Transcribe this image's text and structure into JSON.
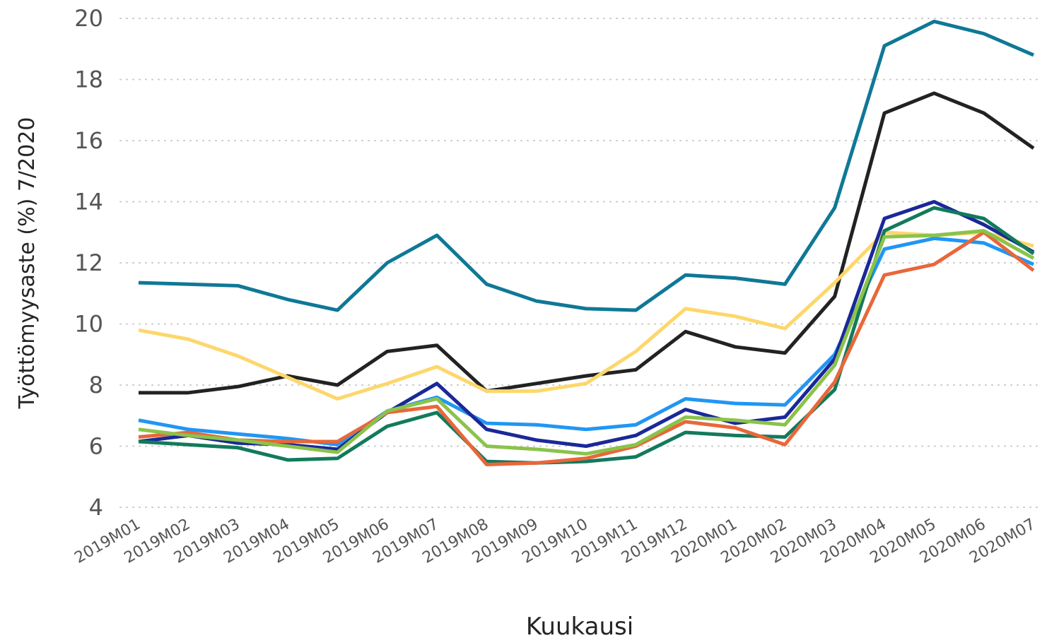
{
  "chart_data": {
    "type": "line",
    "x_label": "Kuukausi",
    "y_label": "Työttömyysaste (%) 7/2020",
    "categories": [
      "2019M01",
      "2019M02",
      "2019M03",
      "2019M04",
      "2019M05",
      "2019M06",
      "2019M07",
      "2019M08",
      "2019M09",
      "2019M10",
      "2019M11",
      "2019M12",
      "2020M01",
      "2020M02",
      "2020M03",
      "2020M04",
      "2020M05",
      "2020M06",
      "2020M07"
    ],
    "ylim": [
      4,
      20
    ],
    "yticks": [
      4,
      6,
      8,
      10,
      12,
      14,
      16,
      18,
      20
    ],
    "grid": true,
    "series": [
      {
        "color": "#0f7896",
        "values": [
          11.35,
          11.3,
          11.25,
          10.8,
          10.45,
          12.0,
          12.9,
          11.3,
          10.75,
          10.5,
          10.45,
          11.6,
          11.5,
          11.3,
          13.8,
          19.1,
          19.9,
          19.5,
          18.8
        ]
      },
      {
        "color": "#222222",
        "values": [
          7.75,
          7.75,
          7.95,
          8.3,
          8.0,
          9.1,
          9.3,
          7.8,
          8.05,
          8.3,
          8.5,
          9.75,
          9.25,
          9.05,
          10.9,
          16.9,
          17.55,
          16.9,
          15.75
        ]
      },
      {
        "color": "#fdd76b",
        "values": [
          9.8,
          9.5,
          8.95,
          8.25,
          7.55,
          8.05,
          8.6,
          7.8,
          7.8,
          8.05,
          9.1,
          10.5,
          10.25,
          9.85,
          11.35,
          13.0,
          12.9,
          13.0,
          12.55
        ]
      },
      {
        "color": "#2196f3",
        "values": [
          6.85,
          6.55,
          6.4,
          6.25,
          6.05,
          7.15,
          7.6,
          6.75,
          6.7,
          6.55,
          6.7,
          7.55,
          7.4,
          7.35,
          9.0,
          12.45,
          12.8,
          12.65,
          11.95
        ]
      },
      {
        "color": "#1b2898",
        "values": [
          6.15,
          6.35,
          6.1,
          6.05,
          5.9,
          7.1,
          8.05,
          6.55,
          6.2,
          6.0,
          6.35,
          7.2,
          6.75,
          6.95,
          8.85,
          13.45,
          14.0,
          13.25,
          12.35
        ]
      },
      {
        "color": "#137a5c",
        "values": [
          6.15,
          6.05,
          5.95,
          5.55,
          5.6,
          6.65,
          7.1,
          5.5,
          5.45,
          5.5,
          5.65,
          6.45,
          6.35,
          6.3,
          7.85,
          13.05,
          13.8,
          13.45,
          12.3
        ]
      },
      {
        "color": "#e8673a",
        "values": [
          6.3,
          6.45,
          6.2,
          6.15,
          6.15,
          7.1,
          7.3,
          5.4,
          5.45,
          5.6,
          6.0,
          6.8,
          6.6,
          6.05,
          8.1,
          11.6,
          11.95,
          13.0,
          11.75
        ]
      },
      {
        "color": "#8bc34a",
        "values": [
          6.55,
          6.35,
          6.2,
          6.0,
          5.8,
          7.15,
          7.55,
          6.0,
          5.9,
          5.75,
          6.05,
          6.95,
          6.85,
          6.7,
          8.65,
          12.85,
          12.9,
          13.05,
          12.15
        ]
      }
    ]
  }
}
